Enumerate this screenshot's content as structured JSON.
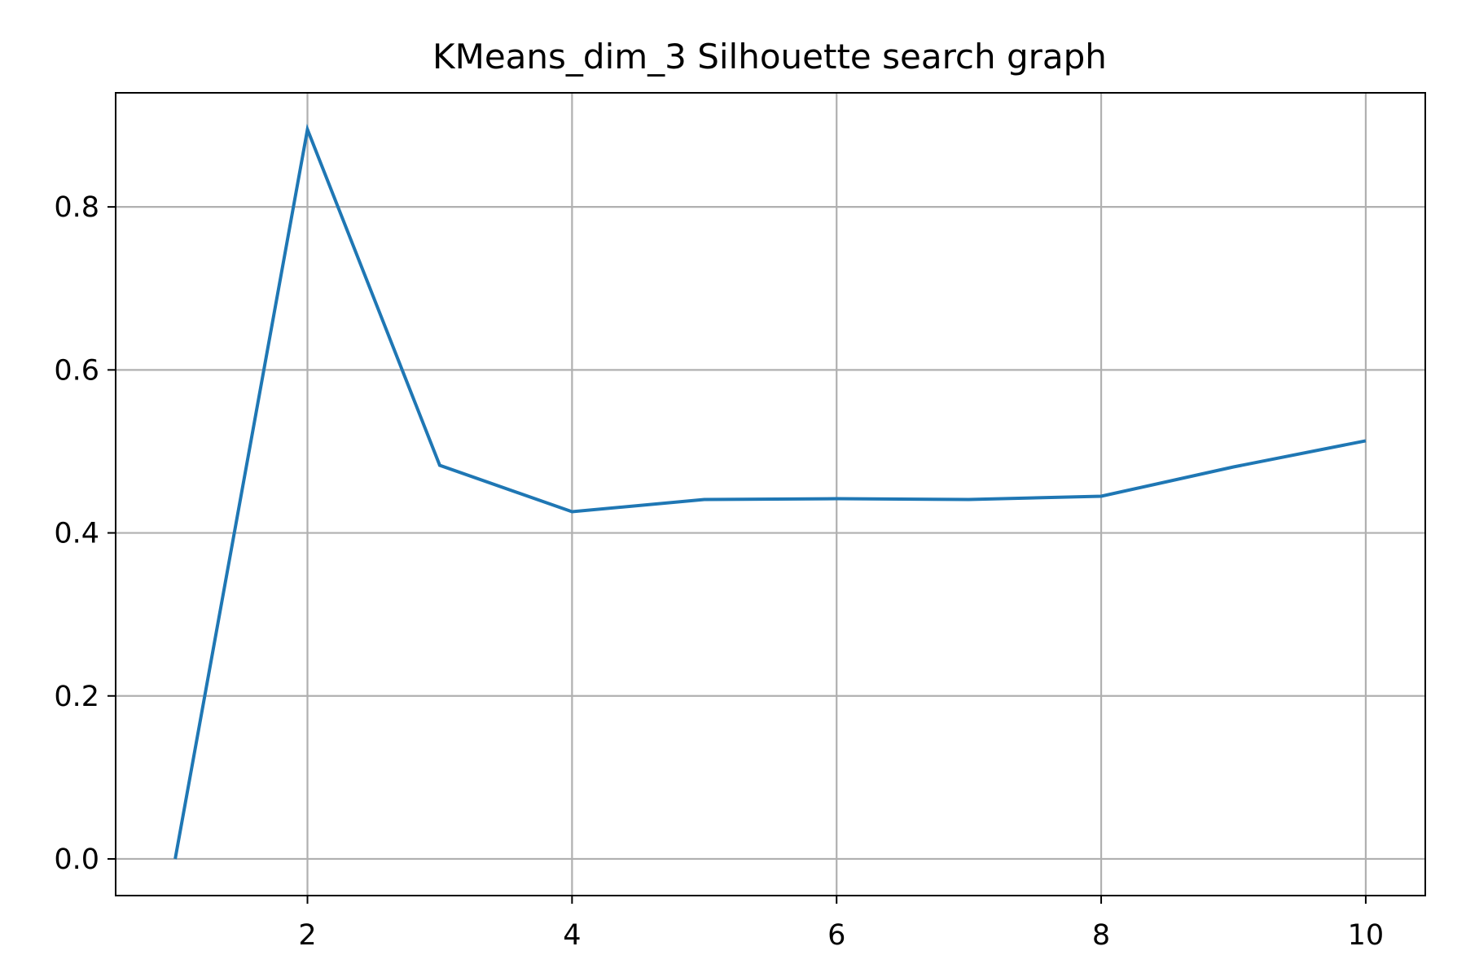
{
  "chart_data": {
    "type": "line",
    "title": "KMeans_dim_3 Silhouette search graph",
    "xlabel": "",
    "ylabel": "",
    "xlim": [
      0.55,
      10.45
    ],
    "ylim": [
      -0.045,
      0.94
    ],
    "xticks": [
      2,
      4,
      6,
      8,
      10
    ],
    "xtick_labels": [
      "2",
      "4",
      "6",
      "8",
      "10"
    ],
    "yticks": [
      0.0,
      0.2,
      0.4,
      0.6,
      0.8
    ],
    "ytick_labels": [
      "0.0",
      "0.2",
      "0.4",
      "0.6",
      "0.8"
    ],
    "grid": true,
    "legend": "none",
    "series": [
      {
        "color": "#1f77b4",
        "x": [
          1,
          2,
          3,
          4,
          5,
          6,
          7,
          8,
          9,
          10
        ],
        "y": [
          0.0,
          0.895,
          0.483,
          0.426,
          0.441,
          0.442,
          0.441,
          0.445,
          0.481,
          0.513
        ]
      }
    ]
  }
}
